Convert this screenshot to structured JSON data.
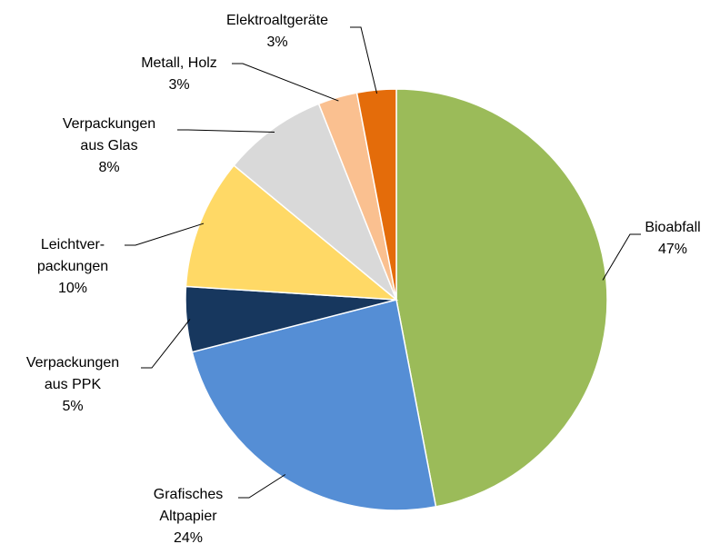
{
  "chart_data": {
    "type": "pie",
    "categories": [
      "Bioabfall",
      "Grafisches\nAltpapier",
      "Verpackungen\naus PPK",
      "Leichtver-\npackungen",
      "Verpackungen\naus Glas",
      "Metall, Holz",
      "Elektroaltgeräte"
    ],
    "values": [
      47,
      24,
      5,
      10,
      8,
      3,
      3
    ],
    "value_labels": [
      "47%",
      "24%",
      "5%",
      "10%",
      "8%",
      "3%",
      "3%"
    ],
    "colors": [
      "#9bbb59",
      "#558ed5",
      "#17375e",
      "#ffd966",
      "#d9d9d9",
      "#fac090",
      "#e46c0a"
    ]
  }
}
